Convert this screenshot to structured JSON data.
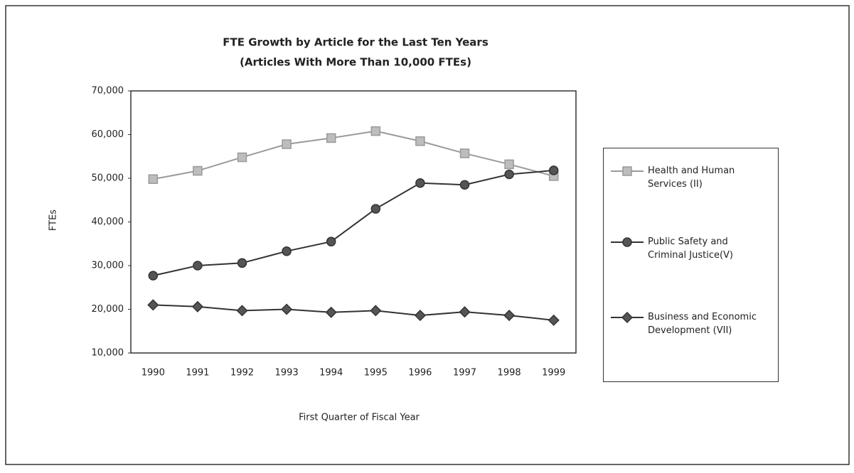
{
  "chart_data": {
    "type": "line",
    "title": "FTE Growth by Article for the Last Ten Years",
    "subtitle": "(Articles With More Than 10,000 FTEs)",
    "y_label": "FTEs",
    "x_label": "First Quarter of Fiscal Year",
    "categories": [
      "1990",
      "1991",
      "1992",
      "1993",
      "1994",
      "1995",
      "1996",
      "1997",
      "1998",
      "1999"
    ],
    "series": [
      {
        "name": "Health and Human Services (II)",
        "color": "#9a9a9a",
        "marker": "square",
        "values": [
          49800,
          51700,
          54800,
          57800,
          59200,
          60800,
          58500,
          55700,
          53200,
          50500
        ]
      },
      {
        "name": "Public Safety and Criminal Justice(V)",
        "color": "#333333",
        "marker": "circle",
        "values": [
          27700,
          30000,
          30600,
          33300,
          35500,
          43000,
          48900,
          48500,
          50900,
          51800
        ]
      },
      {
        "name": "Business and Economic Development (VII)",
        "color": "#333333",
        "marker": "diamond",
        "values": [
          21000,
          20600,
          19700,
          20000,
          19300,
          19700,
          18600,
          19400,
          18600,
          17500
        ]
      }
    ],
    "ylim": [
      10000,
      70000
    ],
    "yticks": [
      {
        "value": 10000,
        "label": "10,000"
      },
      {
        "value": 20000,
        "label": "20,000"
      },
      {
        "value": 30000,
        "label": "30,000"
      },
      {
        "value": 40000,
        "label": "40,000"
      },
      {
        "value": 50000,
        "label": "50,000"
      },
      {
        "value": 60000,
        "label": "60,000"
      },
      {
        "value": 70000,
        "label": "70,000"
      }
    ],
    "grid": false,
    "legend": "right"
  }
}
